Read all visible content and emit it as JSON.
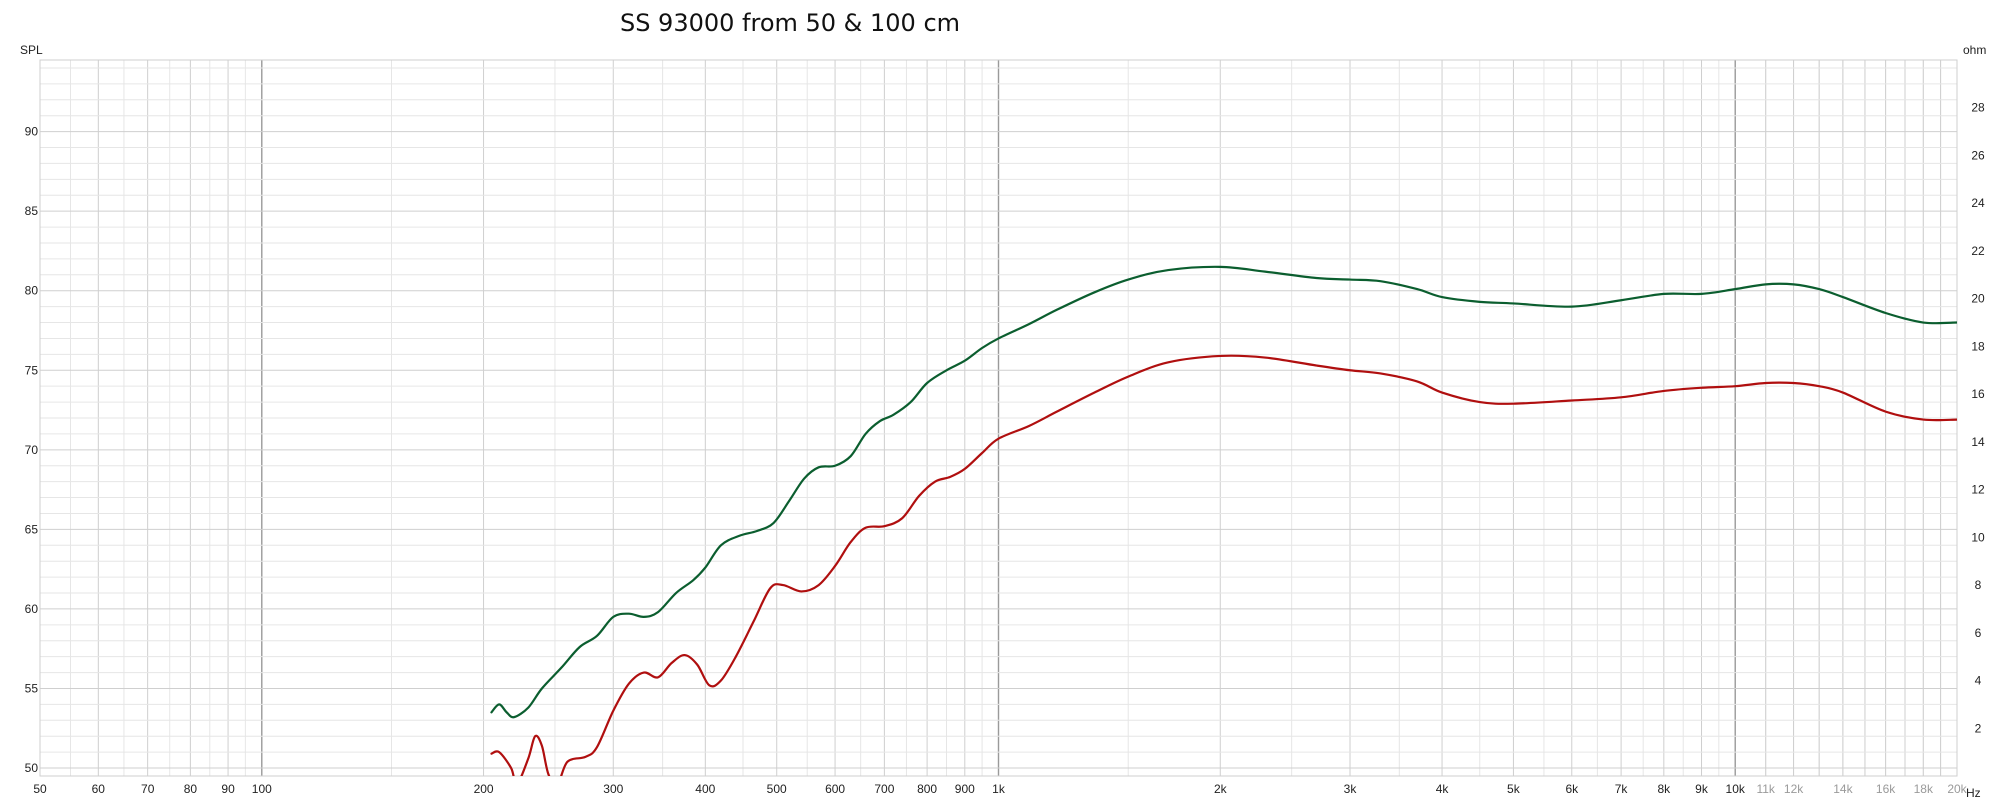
{
  "chart_data": {
    "type": "line",
    "title": "SS 93000 from 50 & 100 cm",
    "ylabel_left": "SPL",
    "ylabel_right": "ohm",
    "xlabel_unit": "Hz",
    "x_scale": "log",
    "xlim": [
      50,
      20000
    ],
    "ylim": [
      49.5,
      94.5
    ],
    "ylim_right": [
      0,
      30
    ],
    "x_ticks": [
      {
        "value": 50,
        "label": "50"
      },
      {
        "value": 60,
        "label": "60"
      },
      {
        "value": 70,
        "label": "70"
      },
      {
        "value": 80,
        "label": "80"
      },
      {
        "value": 90,
        "label": "90"
      },
      {
        "value": 100,
        "label": "100"
      },
      {
        "value": 200,
        "label": "200"
      },
      {
        "value": 300,
        "label": "300"
      },
      {
        "value": 400,
        "label": "400"
      },
      {
        "value": 500,
        "label": "500"
      },
      {
        "value": 600,
        "label": "600"
      },
      {
        "value": 700,
        "label": "700"
      },
      {
        "value": 800,
        "label": "800"
      },
      {
        "value": 900,
        "label": "900"
      },
      {
        "value": 1000,
        "label": "1k"
      },
      {
        "value": 2000,
        "label": "2k"
      },
      {
        "value": 3000,
        "label": "3k"
      },
      {
        "value": 4000,
        "label": "4k"
      },
      {
        "value": 5000,
        "label": "5k"
      },
      {
        "value": 6000,
        "label": "6k"
      },
      {
        "value": 7000,
        "label": "7k"
      },
      {
        "value": 8000,
        "label": "8k"
      },
      {
        "value": 9000,
        "label": "9k"
      },
      {
        "value": 10000,
        "label": "10k"
      },
      {
        "value": 11000,
        "label": "11k"
      },
      {
        "value": 12000,
        "label": "12k"
      },
      {
        "value": 14000,
        "label": "14k"
      },
      {
        "value": 16000,
        "label": "16k"
      },
      {
        "value": 18000,
        "label": "18k"
      },
      {
        "value": 20000,
        "label": "20k"
      }
    ],
    "y_ticks": [
      50,
      55,
      60,
      65,
      70,
      75,
      80,
      85,
      90
    ],
    "y_ticks_right": [
      2,
      4,
      6,
      8,
      10,
      12,
      14,
      16,
      18,
      20,
      22,
      24,
      26,
      28
    ],
    "grid": true,
    "series": [
      {
        "color": "#0b5e2f",
        "points": [
          [
            205,
            53.5
          ],
          [
            210,
            54.0
          ],
          [
            215,
            53.5
          ],
          [
            220,
            53.2
          ],
          [
            230,
            53.8
          ],
          [
            240,
            55.0
          ],
          [
            255,
            56.3
          ],
          [
            270,
            57.6
          ],
          [
            285,
            58.3
          ],
          [
            300,
            59.5
          ],
          [
            315,
            59.7
          ],
          [
            330,
            59.5
          ],
          [
            345,
            59.8
          ],
          [
            365,
            61.0
          ],
          [
            385,
            61.8
          ],
          [
            400,
            62.6
          ],
          [
            420,
            64.0
          ],
          [
            445,
            64.6
          ],
          [
            470,
            64.9
          ],
          [
            495,
            65.4
          ],
          [
            520,
            66.8
          ],
          [
            545,
            68.2
          ],
          [
            570,
            68.9
          ],
          [
            600,
            69.0
          ],
          [
            630,
            69.6
          ],
          [
            660,
            71.0
          ],
          [
            690,
            71.8
          ],
          [
            720,
            72.2
          ],
          [
            760,
            73.0
          ],
          [
            800,
            74.2
          ],
          [
            850,
            75.0
          ],
          [
            900,
            75.6
          ],
          [
            950,
            76.4
          ],
          [
            1000,
            77.0
          ],
          [
            1100,
            77.9
          ],
          [
            1200,
            78.8
          ],
          [
            1350,
            79.9
          ],
          [
            1500,
            80.7
          ],
          [
            1700,
            81.3
          ],
          [
            2000,
            81.5
          ],
          [
            2300,
            81.2
          ],
          [
            2700,
            80.8
          ],
          [
            3000,
            80.7
          ],
          [
            3300,
            80.6
          ],
          [
            3700,
            80.1
          ],
          [
            4000,
            79.6
          ],
          [
            4500,
            79.3
          ],
          [
            5000,
            79.2
          ],
          [
            6000,
            79.0
          ],
          [
            7000,
            79.4
          ],
          [
            8000,
            79.8
          ],
          [
            9000,
            79.8
          ],
          [
            10000,
            80.1
          ],
          [
            11000,
            80.4
          ],
          [
            12000,
            80.4
          ],
          [
            13000,
            80.1
          ],
          [
            14000,
            79.6
          ],
          [
            16000,
            78.6
          ],
          [
            18000,
            78.0
          ],
          [
            20000,
            78.0
          ]
        ]
      },
      {
        "color": "#b00f0f",
        "points": [
          [
            205,
            50.9
          ],
          [
            210,
            51.0
          ],
          [
            218,
            50.0
          ],
          [
            222,
            49.0
          ],
          [
            230,
            50.6
          ],
          [
            235,
            52.0
          ],
          [
            240,
            51.4
          ],
          [
            245,
            49.6
          ],
          [
            252,
            49.0
          ],
          [
            260,
            50.4
          ],
          [
            275,
            50.7
          ],
          [
            285,
            51.3
          ],
          [
            300,
            53.6
          ],
          [
            315,
            55.3
          ],
          [
            330,
            56.0
          ],
          [
            345,
            55.7
          ],
          [
            360,
            56.6
          ],
          [
            375,
            57.1
          ],
          [
            390,
            56.5
          ],
          [
            405,
            55.2
          ],
          [
            420,
            55.5
          ],
          [
            440,
            57.0
          ],
          [
            465,
            59.2
          ],
          [
            490,
            61.3
          ],
          [
            510,
            61.5
          ],
          [
            540,
            61.1
          ],
          [
            570,
            61.5
          ],
          [
            600,
            62.7
          ],
          [
            630,
            64.2
          ],
          [
            660,
            65.1
          ],
          [
            700,
            65.2
          ],
          [
            740,
            65.7
          ],
          [
            780,
            67.1
          ],
          [
            820,
            68.0
          ],
          [
            860,
            68.3
          ],
          [
            900,
            68.8
          ],
          [
            950,
            69.8
          ],
          [
            1000,
            70.7
          ],
          [
            1100,
            71.5
          ],
          [
            1200,
            72.4
          ],
          [
            1350,
            73.6
          ],
          [
            1500,
            74.6
          ],
          [
            1700,
            75.5
          ],
          [
            2000,
            75.9
          ],
          [
            2300,
            75.8
          ],
          [
            2700,
            75.3
          ],
          [
            3000,
            75.0
          ],
          [
            3300,
            74.8
          ],
          [
            3700,
            74.3
          ],
          [
            4000,
            73.6
          ],
          [
            4500,
            73.0
          ],
          [
            5000,
            72.9
          ],
          [
            6000,
            73.1
          ],
          [
            7000,
            73.3
          ],
          [
            8000,
            73.7
          ],
          [
            9000,
            73.9
          ],
          [
            10000,
            74.0
          ],
          [
            11000,
            74.2
          ],
          [
            12000,
            74.2
          ],
          [
            13000,
            74.0
          ],
          [
            14000,
            73.6
          ],
          [
            16000,
            72.4
          ],
          [
            18000,
            71.9
          ],
          [
            20000,
            71.9
          ]
        ]
      }
    ]
  }
}
